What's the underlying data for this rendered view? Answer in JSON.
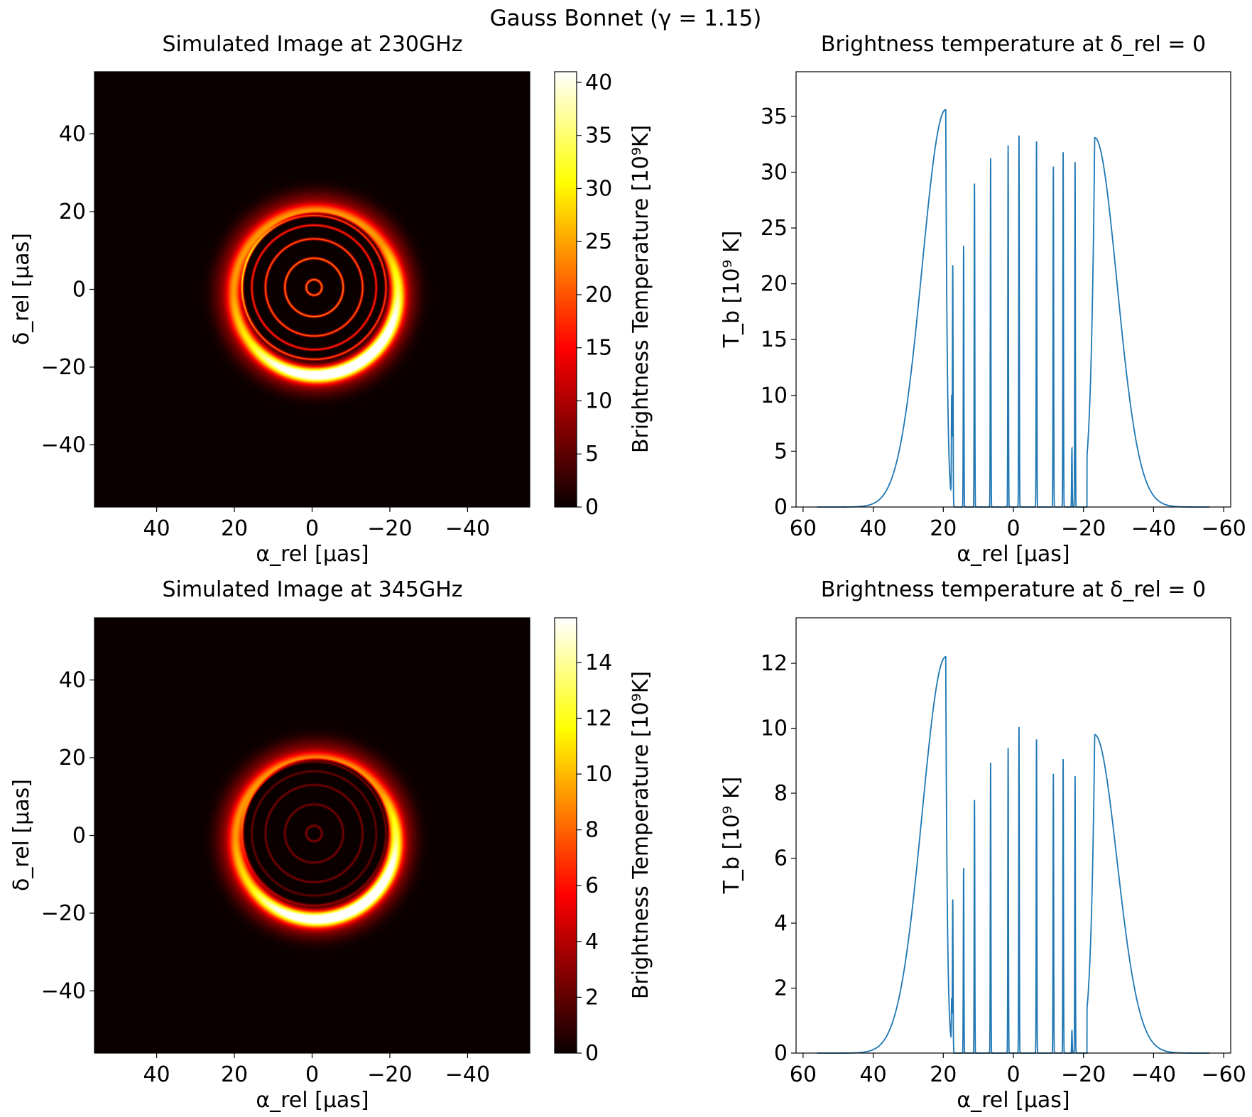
{
  "figure": {
    "suptitle": "Gauss Bonnet (γ = 1.15)"
  },
  "chart_data": [
    {
      "type": "heatmap",
      "title": "Simulated Image at 230GHz",
      "xlabel": "α_rel [μas]",
      "ylabel": "δ_rel [μas]",
      "xlim": [
        56,
        -56
      ],
      "ylim": [
        -56,
        56
      ],
      "xticks": [
        40,
        20,
        0,
        -20,
        -40
      ],
      "yticks": [
        -40,
        -20,
        0,
        20,
        40
      ],
      "colorbar": {
        "label": "Brightness Temperature [10⁹K]",
        "range": [
          0,
          41
        ],
        "ticks": [
          0,
          5,
          10,
          15,
          20,
          25,
          30,
          35,
          40
        ],
        "colormap": "hot"
      },
      "features": {
        "outer_ring_radius": 21,
        "outer_ring_offset": [
          -1,
          -1
        ],
        "shadow_radius": 19,
        "shadow_offset": [
          -1,
          1
        ],
        "inner_rings": [
          {
            "radius": 2,
            "value": 24
          },
          {
            "radius": 7.5,
            "value": 24
          },
          {
            "radius": 12.5,
            "value": 22
          },
          {
            "radius": 16,
            "value": 18
          },
          {
            "radius": 18.5,
            "value": 20
          }
        ]
      }
    },
    {
      "type": "line",
      "title": "Brightness temperature at δ_rel = 0",
      "xlabel": "α_rel [μas]",
      "ylabel": "T_b [10⁹ K]",
      "xlim": [
        62,
        -62
      ],
      "ylim": [
        0,
        39
      ],
      "xticks": [
        60,
        40,
        20,
        0,
        -20,
        -40,
        -60
      ],
      "yticks": [
        0,
        5,
        10,
        15,
        20,
        25,
        30,
        35
      ],
      "line_color": "#1f77b4",
      "peaks": [
        {
          "x": 19.3,
          "y": 35.6
        },
        {
          "x": 17.3,
          "y": 21.3
        },
        {
          "x": 17.6,
          "y": 9.2
        },
        {
          "x": 14.2,
          "y": 23.4
        },
        {
          "x": 11.1,
          "y": 29.2
        },
        {
          "x": 6.5,
          "y": 31.3
        },
        {
          "x": 1.5,
          "y": 32.4
        },
        {
          "x": -1.6,
          "y": 33.5
        },
        {
          "x": -6.6,
          "y": 32.9
        },
        {
          "x": -11.4,
          "y": 30.5
        },
        {
          "x": -14.2,
          "y": 31.8
        },
        {
          "x": -16.7,
          "y": 5.3
        },
        {
          "x": -17.6,
          "y": 31.0
        },
        {
          "x": -23.2,
          "y": 33.1
        }
      ]
    },
    {
      "type": "heatmap",
      "title": "Simulated Image at 345GHz",
      "xlabel": "α_rel [μas]",
      "ylabel": "δ_rel [μas]",
      "xlim": [
        56,
        -56
      ],
      "ylim": [
        -56,
        56
      ],
      "xticks": [
        40,
        20,
        0,
        -20,
        -40
      ],
      "yticks": [
        -40,
        -20,
        0,
        20,
        40
      ],
      "colorbar": {
        "label": "Brightness Temperature [10⁹K]",
        "range": [
          0,
          15.6
        ],
        "ticks": [
          0,
          2,
          4,
          6,
          8,
          10,
          12,
          14
        ],
        "colormap": "hot"
      },
      "features": {
        "outer_ring_radius": 20.5,
        "outer_ring_offset": [
          -1,
          -1
        ],
        "shadow_radius": 19,
        "shadow_offset": [
          -1,
          1
        ],
        "inner_rings": [
          {
            "radius": 2,
            "value": 8
          },
          {
            "radius": 7.5,
            "value": 7
          },
          {
            "radius": 12.5,
            "value": 7
          },
          {
            "radius": 16,
            "value": 6
          },
          {
            "radius": 18.5,
            "value": 7
          }
        ]
      }
    },
    {
      "type": "line",
      "title": "Brightness temperature at δ_rel = 0",
      "xlabel": "α_rel [μas]",
      "ylabel": "T_b [10⁹ K]",
      "xlim": [
        62,
        -62
      ],
      "ylim": [
        0,
        13.4
      ],
      "xticks": [
        60,
        40,
        20,
        0,
        -20,
        -40,
        -60
      ],
      "yticks": [
        0,
        2,
        4,
        6,
        8,
        10,
        12
      ],
      "line_color": "#1f77b4",
      "peaks": [
        {
          "x": 19.3,
          "y": 12.2
        },
        {
          "x": 17.3,
          "y": 4.6
        },
        {
          "x": 17.6,
          "y": 1.4
        },
        {
          "x": 14.2,
          "y": 5.7
        },
        {
          "x": 11.1,
          "y": 7.85
        },
        {
          "x": 6.5,
          "y": 8.95
        },
        {
          "x": 1.5,
          "y": 9.4
        },
        {
          "x": -1.6,
          "y": 10.1
        },
        {
          "x": -6.6,
          "y": 9.7
        },
        {
          "x": -11.4,
          "y": 8.6
        },
        {
          "x": -14.2,
          "y": 9.05
        },
        {
          "x": -16.7,
          "y": 0.7
        },
        {
          "x": -17.6,
          "y": 8.55
        },
        {
          "x": -23.2,
          "y": 9.8
        }
      ]
    }
  ]
}
